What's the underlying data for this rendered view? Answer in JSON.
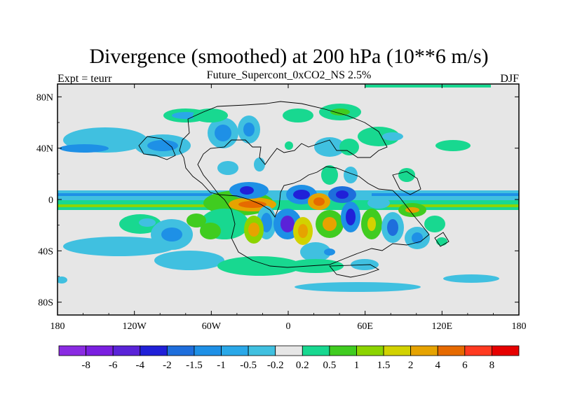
{
  "title": "Divergence (smoothed) at 200 hPa (10**6 m/s)",
  "subtitle": "Future_Supercont_0xCO2_NS 2.5%",
  "left_label": "Expt = teurr",
  "right_label": "DJF",
  "chart_data": {
    "type": "heatmap",
    "x_ticks": [
      "180",
      "120W",
      "60W",
      "0",
      "60E",
      "120E",
      "180"
    ],
    "y_ticks": [
      "80N",
      "40N",
      "0",
      "40S",
      "80S"
    ],
    "xlim": [
      -180,
      180
    ],
    "ylim": [
      -90,
      90
    ],
    "colorbar_labels": [
      "-8",
      "-6",
      "-4",
      "-2",
      "-1.5",
      "-1",
      "-0.5",
      "-0.2",
      "0.2",
      "0.5",
      "1",
      "1.5",
      "2",
      "4",
      "6",
      "8"
    ],
    "colorbar_colors": [
      "#8a2be2",
      "#7a1fe0",
      "#5a23d8",
      "#2020d8",
      "#1e6edc",
      "#1e90e6",
      "#2aa8e8",
      "#40c0e0",
      "#e6e6e6",
      "#18d890",
      "#40cc20",
      "#8cd400",
      "#d2d200",
      "#e6a300",
      "#e66a00",
      "#ff3a20",
      "#e60000"
    ],
    "background_color": "#e6e6e6"
  }
}
